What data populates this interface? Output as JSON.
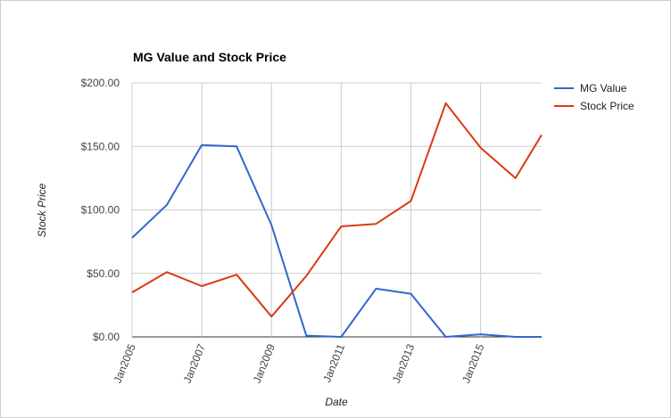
{
  "chart_data": {
    "type": "line",
    "title": "MG Value and Stock Price",
    "xlabel": "Date",
    "ylabel": "Stock Price",
    "x": [
      2005,
      2006,
      2007,
      2008,
      2009,
      2010,
      2011,
      2012,
      2013,
      2014,
      2015,
      2016,
      2016.75
    ],
    "xlim": [
      2005,
      2016.75
    ],
    "x_ticks": [
      {
        "value": 2005,
        "label": "Jan2005"
      },
      {
        "value": 2007,
        "label": "Jan2007"
      },
      {
        "value": 2009,
        "label": "Jan2009"
      },
      {
        "value": 2011,
        "label": "Jan2011"
      },
      {
        "value": 2013,
        "label": "Jan2013"
      },
      {
        "value": 2015,
        "label": "Jan2015"
      }
    ],
    "ylim": [
      0,
      200
    ],
    "y_ticks": [
      {
        "value": 0,
        "label": "$0.00"
      },
      {
        "value": 50,
        "label": "$50.00"
      },
      {
        "value": 100,
        "label": "$100.00"
      },
      {
        "value": 150,
        "label": "$150.00"
      },
      {
        "value": 200,
        "label": "$200.00"
      }
    ],
    "grid": true,
    "legend_position": "right",
    "series": [
      {
        "name": "MG Value",
        "color": "#3366cc",
        "values": [
          78,
          104,
          151,
          150,
          88,
          1,
          0,
          38,
          34,
          0,
          2,
          0,
          0
        ]
      },
      {
        "name": "Stock Price",
        "color": "#dc3912",
        "values": [
          35,
          51,
          40,
          49,
          16,
          48,
          87,
          89,
          107,
          184,
          149,
          125,
          159
        ]
      }
    ]
  }
}
